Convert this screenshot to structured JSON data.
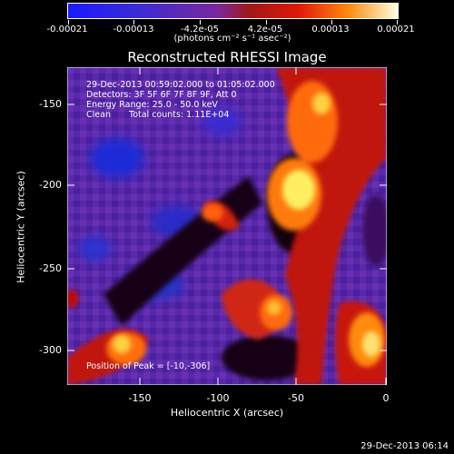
{
  "colorbar": {
    "tick_labels": [
      "-0.00021",
      "-0.00013",
      "-4.2e-05",
      "4.2e-05",
      "0.00013",
      "0.00021"
    ],
    "units": "(photons cm⁻² s⁻¹ asec⁻²)"
  },
  "title": "Reconstructed RHESSI Image",
  "annotations": {
    "time_range": "29-Dec-2013 00:59:02.000 to 01:05:02.000",
    "detectors": "Detectors: 3F 5F 6F 7F 8F 9F, Att 0",
    "energy_range": "Energy Range: 25.0 - 50.0 keV",
    "method": "Clean",
    "total_counts": "Total counts: 1.11E+04",
    "peak": "Position of Peak = [-10,-306]"
  },
  "axes": {
    "x_title": "Heliocentric X (arcsec)",
    "y_title": "Heliocentric Y (arcsec)",
    "x_ticks": [
      "-150",
      "-100",
      "-50",
      "0"
    ],
    "y_ticks": [
      "-150",
      "-200",
      "-250",
      "-300"
    ]
  },
  "timestamp": "29-Dec-2013 06:14",
  "colors": {
    "background": "#000000",
    "low": "#1d3cff",
    "mid": "#6a2aa8",
    "high": "#ff5a00",
    "peak": "#ffff70"
  }
}
